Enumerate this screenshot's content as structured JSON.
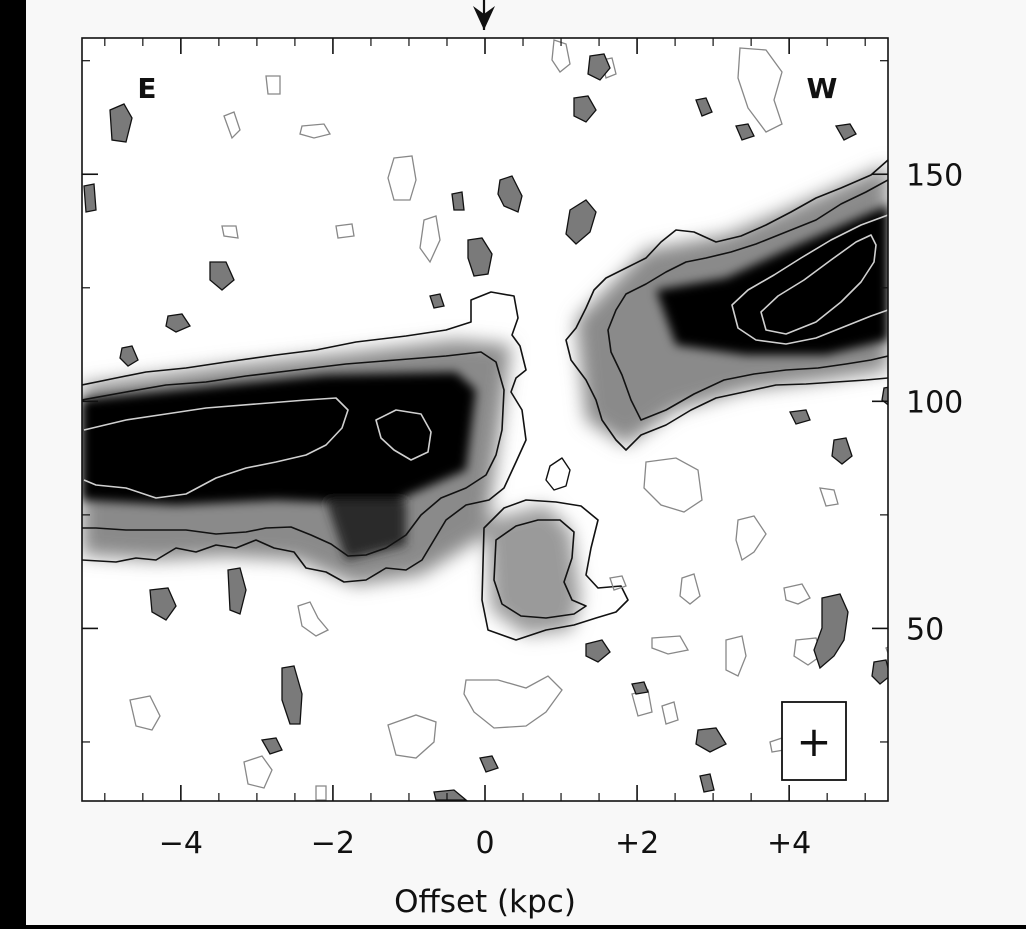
{
  "chart_data": {
    "type": "heatmap",
    "title": "",
    "xlabel": "Offset (kpc)",
    "ylabel": "",
    "xlim": [
      -5.3,
      5.3
    ],
    "ylim": [
      12,
      180
    ],
    "x_ticks": [
      -4,
      -2,
      0,
      2,
      4
    ],
    "x_tick_labels": [
      "−4",
      "−2",
      "0",
      "+2",
      "+4"
    ],
    "y_ticks": [
      50,
      100,
      150
    ],
    "y_tick_labels": [
      "50",
      "100",
      "150"
    ],
    "corner_labels": {
      "east": "E",
      "west": "W"
    },
    "marker_at_x": 0,
    "beam_box": "+",
    "series": [
      {
        "band": "east",
        "ridge_x": [
          -5.3,
          -4.0,
          -2.0,
          -0.3
        ],
        "ridge_y": [
          84,
          87,
          92,
          95
        ]
      },
      {
        "band": "west",
        "ridge_x": [
          1.3,
          2.0,
          3.0,
          4.0,
          5.3
        ],
        "ridge_y": [
          100,
          110,
          117,
          122,
          128
        ]
      }
    ],
    "grid": false
  }
}
